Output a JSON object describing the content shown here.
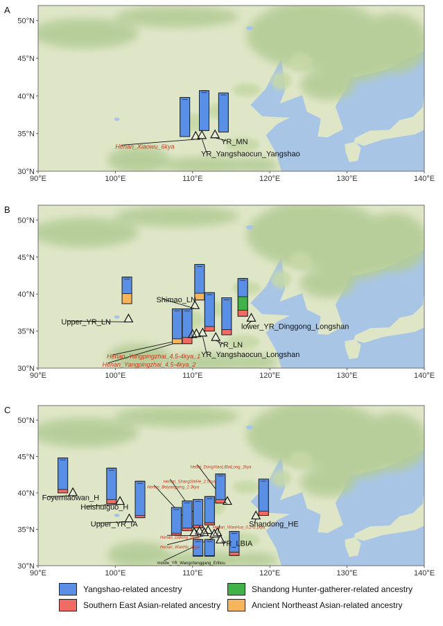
{
  "colors": {
    "yangshao": "#5a8fe6",
    "southern": "#ef6b63",
    "shandong": "#3fb24a",
    "ane": "#f6b55a",
    "sea": "#a8c5e6",
    "land": "#dfe6c7",
    "forest": "#b4cc96",
    "label_red": "#c8381f"
  },
  "axes": {
    "lon_ticks": [
      "90°E",
      "100°E",
      "110°E",
      "120°E",
      "130°E",
      "140°E"
    ],
    "lat_ticks": [
      "30°N",
      "35°N",
      "40°N",
      "45°N",
      "50°N"
    ]
  },
  "panels": [
    {
      "letter": "A",
      "bars": [
        {
          "lon": 109.0,
          "lat": 34.6,
          "top": 39.8,
          "comp": {
            "yangshao": 1.0
          }
        },
        {
          "lon": 111.5,
          "lat": 35.4,
          "top": 40.7,
          "comp": {
            "yangshao": 1.0
          }
        },
        {
          "lon": 114.0,
          "lat": 35.2,
          "top": 40.4,
          "comp": {
            "yangshao": 1.0
          }
        }
      ],
      "sites": [
        {
          "name": "Henan_Xiaowu_6kya",
          "style": "red",
          "lon": 110.4,
          "lat": 34.7,
          "tx": 100.0,
          "ty": 33.0,
          "anchor": "start"
        },
        {
          "name": "YR_Yangshaocun_Yangshao",
          "style": "black",
          "lon": 111.2,
          "lat": 34.8,
          "tx": 111.1,
          "ty": 32.0,
          "anchor": "start"
        },
        {
          "name": "YR_MN",
          "style": "black",
          "lon": 112.9,
          "lat": 34.9,
          "tx": 113.7,
          "ty": 33.6,
          "anchor": "start"
        }
      ]
    },
    {
      "letter": "B",
      "bars": [
        {
          "lon": 101.5,
          "lat": 38.7,
          "top": 42.3,
          "comp": {
            "yangshao": 0.62,
            "ane": 0.38
          }
        },
        {
          "lon": 108.0,
          "lat": 33.3,
          "top": 38.0,
          "comp": {
            "yangshao": 0.86,
            "ane": 0.14
          }
        },
        {
          "lon": 109.3,
          "lat": 33.3,
          "top": 38.0,
          "comp": {
            "yangshao": 0.82,
            "southern": 0.18
          }
        },
        {
          "lon": 110.9,
          "lat": 39.2,
          "top": 44.0,
          "comp": {
            "yangshao": 0.81,
            "ane": 0.19
          }
        },
        {
          "lon": 112.2,
          "lat": 35.0,
          "top": 40.2,
          "comp": {
            "yangshao": 0.88,
            "southern": 0.12
          }
        },
        {
          "lon": 114.4,
          "lat": 34.5,
          "top": 39.5,
          "comp": {
            "yangshao": 0.86,
            "southern": 0.14
          }
        },
        {
          "lon": 116.5,
          "lat": 37.0,
          "top": 42.1,
          "comp": {
            "yangshao": 0.48,
            "shandong": 0.36,
            "southern": 0.16
          }
        }
      ],
      "sites": [
        {
          "name": "Upper_YR_LN",
          "style": "black",
          "lon": 101.7,
          "lat": 36.7,
          "tx": 93.0,
          "ty": 35.9,
          "anchor": "start"
        },
        {
          "name": "Shimao_LN",
          "style": "black",
          "lon": 110.3,
          "lat": 38.5,
          "tx": 105.3,
          "ty": 38.9,
          "anchor": "start"
        },
        {
          "name": "lower_YR_Dinggong_Longshan",
          "style": "black",
          "lon": 117.6,
          "lat": 36.8,
          "tx": 116.3,
          "ty": 35.3,
          "anchor": "start"
        },
        {
          "name": "YR_LN",
          "style": "black",
          "lon": 113.0,
          "lat": 34.2,
          "tx": 113.3,
          "ty": 32.8,
          "anchor": "start"
        },
        {
          "name": "YR_Yangshaocun_Longshan",
          "style": "black",
          "lon": 111.3,
          "lat": 34.8,
          "tx": 111.1,
          "ty": 31.5,
          "anchor": "start"
        },
        {
          "name": "Henan_Yangpingzhai_4.5-4kya_1",
          "style": "red",
          "lon": 110.0,
          "lat": 34.6,
          "tx": 98.9,
          "ty": 31.3,
          "anchor": "start"
        },
        {
          "name": "Henan_Yangpingzhai_4.5-4kya_2",
          "style": "red",
          "lon": 110.5,
          "lat": 34.7,
          "tx": 98.3,
          "ty": 30.2,
          "anchor": "start"
        }
      ]
    },
    {
      "letter": "C",
      "bars": [
        {
          "lon": 93.2,
          "lat": 40.0,
          "top": 44.8,
          "comp": {
            "yangshao": 0.9,
            "southern": 0.1
          }
        },
        {
          "lon": 99.5,
          "lat": 38.5,
          "top": 43.4,
          "comp": {
            "yangshao": 0.88,
            "southern": 0.12
          }
        },
        {
          "lon": 103.2,
          "lat": 36.6,
          "top": 41.6,
          "comp": {
            "yangshao": 0.94,
            "southern": 0.06
          }
        },
        {
          "lon": 107.9,
          "lat": 34.2,
          "top": 38.0,
          "comp": {
            "yangshao": 0.93,
            "southern": 0.07
          }
        },
        {
          "lon": 109.3,
          "lat": 34.8,
          "top": 38.9,
          "comp": {
            "yangshao": 0.91,
            "southern": 0.09
          }
        },
        {
          "lon": 110.7,
          "lat": 35.2,
          "top": 39.1,
          "comp": {
            "yangshao": 0.91,
            "southern": 0.09
          }
        },
        {
          "lon": 112.2,
          "lat": 35.6,
          "top": 39.5,
          "comp": {
            "yangshao": 0.92,
            "southern": 0.08
          }
        },
        {
          "lon": 113.6,
          "lat": 38.6,
          "top": 42.6,
          "comp": {
            "yangshao": 0.88,
            "southern": 0.12
          }
        },
        {
          "lon": 115.4,
          "lat": 31.4,
          "top": 34.7,
          "comp": {
            "yangshao": 0.86,
            "southern": 0.14
          }
        },
        {
          "lon": 110.7,
          "lat": 31.3,
          "top": 33.6,
          "comp": {
            "yangshao": 0.96,
            "southern": 0.04
          }
        },
        {
          "lon": 112.2,
          "lat": 31.3,
          "top": 33.6,
          "comp": {
            "yangshao": 0.96,
            "southern": 0.04
          }
        },
        {
          "lon": 119.2,
          "lat": 36.9,
          "top": 41.9,
          "comp": {
            "yangshao": 0.88,
            "southern": 0.12
          }
        }
      ],
      "sites": [
        {
          "name": "Foyemiaowan_H",
          "style": "black",
          "lon": 94.5,
          "lat": 40.1,
          "tx": 90.5,
          "ty": 39.0,
          "anchor": "start"
        },
        {
          "name": "Heishuiguo_H",
          "style": "black",
          "lon": 100.6,
          "lat": 38.9,
          "tx": 95.5,
          "ty": 37.7,
          "anchor": "start"
        },
        {
          "name": "Upper_YR_IA",
          "style": "black",
          "lon": 101.8,
          "lat": 36.5,
          "tx": 96.8,
          "ty": 35.4,
          "anchor": "start"
        },
        {
          "name": "Hebei_DongXiaoLiBaiLong_2kya",
          "style": "red-small",
          "lon": 114.5,
          "lat": 38.9,
          "tx": 109.7,
          "ty": 43.4,
          "anchor": "start"
        },
        {
          "name": "Henan_ShangShiHe_2.5kya",
          "style": "red-small",
          "lon": 112.0,
          "lat": 34.9,
          "tx": 106.2,
          "ty": 41.4,
          "anchor": "start"
        },
        {
          "name": "Henan_Beiyangping_2.3kya",
          "style": "red-small",
          "lon": 110.9,
          "lat": 34.8,
          "tx": 104.1,
          "ty": 40.6,
          "anchor": "start"
        },
        {
          "name": "Henan_WanHua_0.2-0.1kya",
          "style": "red-small",
          "lon": 113.2,
          "lat": 34.6,
          "tx": 112.6,
          "ty": 35.1,
          "anchor": "start"
        },
        {
          "name": "Henan_Didong_2kya",
          "style": "red-small",
          "lon": 110.2,
          "lat": 34.6,
          "tx": 105.8,
          "ty": 33.7,
          "anchor": "start"
        },
        {
          "name": "Henan_WanHu_3kya",
          "style": "red-small",
          "lon": 111.5,
          "lat": 34.6,
          "tx": 105.8,
          "ty": 32.4,
          "anchor": "start"
        },
        {
          "name": "middle_YR_Wangchenggang_Erlitou",
          "style": "black-small",
          "lon": 112.8,
          "lat": 34.4,
          "tx": 105.4,
          "ty": 30.2,
          "anchor": "start"
        },
        {
          "name": "YR_LBIA",
          "style": "black",
          "lon": 113.6,
          "lat": 33.6,
          "tx": 113.7,
          "ty": 32.7,
          "anchor": "start"
        },
        {
          "name": "Shandong_HE",
          "style": "black",
          "lon": 118.2,
          "lat": 36.9,
          "tx": 117.3,
          "ty": 35.4,
          "anchor": "start"
        }
      ]
    }
  ],
  "legend": [
    {
      "key": "yangshao",
      "label": "Yangshao-related ancestry"
    },
    {
      "key": "shandong",
      "label": "Shandong Hunter-gatherer-related ancestry"
    },
    {
      "key": "southern",
      "label": "Southern East Asian-related ancestry"
    },
    {
      "key": "ane",
      "label": "Ancient Northeast Asian-related ancestry"
    }
  ]
}
